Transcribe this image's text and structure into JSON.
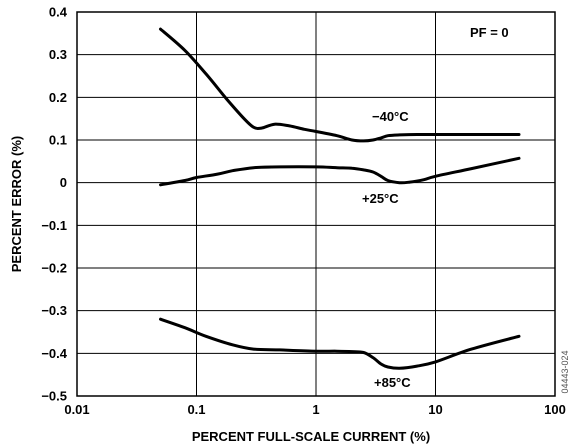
{
  "chart_data": {
    "type": "line",
    "xscale": "log",
    "xlim": [
      0.01,
      100
    ],
    "ylim": [
      -0.5,
      0.4
    ],
    "xticks": [
      0.01,
      0.1,
      1,
      10,
      100
    ],
    "xtick_labels": [
      "0.01",
      "0.1",
      "1",
      "10",
      "100"
    ],
    "yticks": [
      0.4,
      0.3,
      0.2,
      0.1,
      0,
      -0.1,
      -0.2,
      -0.3,
      -0.4,
      -0.5
    ],
    "ytick_labels": [
      "0.4",
      "0.3",
      "0.2",
      "0.1",
      "0",
      "−0.1",
      "−0.2",
      "−0.3",
      "−0.4",
      "−0.5"
    ],
    "xlabel": "PERCENT FULL-SCALE CURRENT (%)",
    "ylabel": "PERCENT ERROR (%)",
    "grid": true,
    "annotation": "PF = 0",
    "figure_id": "04443-024",
    "series": [
      {
        "name": "−40°C",
        "x": [
          0.05,
          0.08,
          0.12,
          0.18,
          0.25,
          0.3,
          0.35,
          0.45,
          0.6,
          0.8,
          1.0,
          1.5,
          2.0,
          2.5,
          3.0,
          3.5,
          4.0,
          5.0,
          7.0,
          10.0,
          20.0,
          50.0
        ],
        "y": [
          0.36,
          0.31,
          0.255,
          0.195,
          0.15,
          0.13,
          0.128,
          0.137,
          0.133,
          0.125,
          0.12,
          0.11,
          0.1,
          0.098,
          0.1,
          0.105,
          0.11,
          0.112,
          0.113,
          0.113,
          0.113,
          0.113
        ]
      },
      {
        "name": "+25°C",
        "x": [
          0.05,
          0.08,
          0.1,
          0.15,
          0.2,
          0.3,
          0.5,
          1.0,
          1.5,
          2.0,
          2.5,
          3.0,
          3.5,
          4.0,
          5.0,
          6.0,
          8.0,
          10.0,
          20.0,
          50.0
        ],
        "y": [
          -0.005,
          0.005,
          0.012,
          0.02,
          0.028,
          0.035,
          0.037,
          0.037,
          0.035,
          0.034,
          0.03,
          0.025,
          0.015,
          0.005,
          0.0,
          0.001,
          0.007,
          0.015,
          0.033,
          0.057
        ]
      },
      {
        "name": "+85°C",
        "x": [
          0.05,
          0.08,
          0.12,
          0.2,
          0.3,
          0.5,
          1.0,
          1.5,
          2.0,
          2.5,
          3.0,
          3.5,
          4.0,
          5.0,
          7.0,
          10.0,
          20.0,
          50.0
        ],
        "y": [
          -0.32,
          -0.34,
          -0.36,
          -0.38,
          -0.39,
          -0.392,
          -0.395,
          -0.395,
          -0.396,
          -0.398,
          -0.41,
          -0.425,
          -0.432,
          -0.435,
          -0.43,
          -0.42,
          -0.39,
          -0.36
        ]
      }
    ]
  }
}
